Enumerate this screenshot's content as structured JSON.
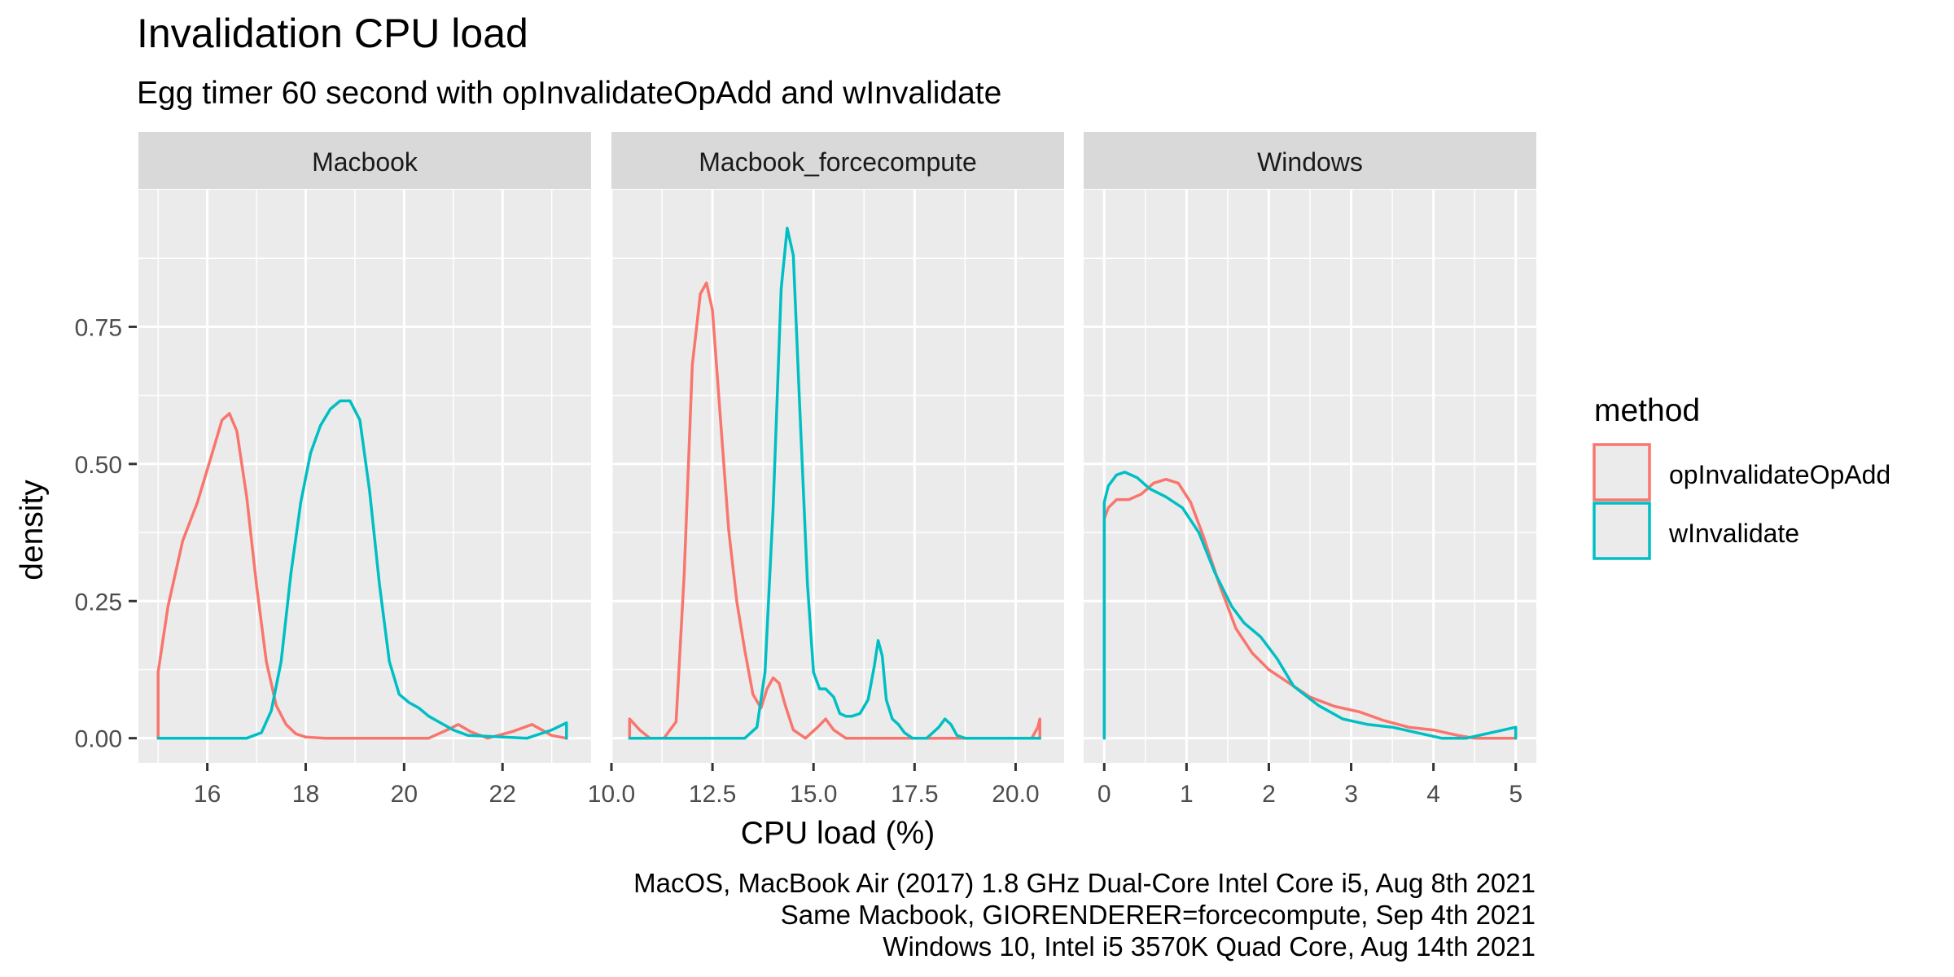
{
  "title": "Invalidation CPU load",
  "subtitle": "Egg timer 60 second with opInvalidateOpAdd and wInvalidate",
  "caption": [
    "MacOS, MacBook Air (2017) 1.8 GHz Dual-Core Intel Core i5, Aug 8th 2021",
    "Same Macbook, GIORENDERER=forcecompute, Sep 4th 2021",
    "Windows 10, Intel i5 3570K Quad Core, Aug 14th 2021"
  ],
  "chart_data": {
    "type": "line",
    "title": "Invalidation CPU load",
    "subtitle": "Egg timer 60 second with opInvalidateOpAdd and wInvalidate",
    "xlabel": "CPU load (%)",
    "ylabel": "density",
    "grid": true,
    "legend": {
      "title": "method",
      "placement": "right",
      "entries": [
        {
          "name": "opInvalidateOpAdd",
          "color": "#F8766D"
        },
        {
          "name": "wInvalidate",
          "color": "#00BFC4"
        }
      ]
    },
    "ylim": [
      -0.045,
      1.0
    ],
    "yticks": [
      0,
      0.25,
      0.5,
      0.75
    ],
    "ytick_labels": [
      "0.00",
      "0.25",
      "0.50",
      "0.75"
    ],
    "facets": [
      {
        "label": "Macbook",
        "xlim": [
          14.6,
          23.8
        ],
        "xticks": [
          16,
          18,
          20,
          22
        ],
        "xtick_labels": [
          "16",
          "18",
          "20",
          "22"
        ],
        "series": [
          {
            "name": "opInvalidateOpAdd",
            "color": "#F8766D",
            "x": [
              15.0,
              15.0,
              15.2,
              15.5,
              15.8,
              16.1,
              16.3,
              16.45,
              16.6,
              16.8,
              17.0,
              17.2,
              17.4,
              17.6,
              17.8,
              18.0,
              18.4,
              20.5,
              20.9,
              21.1,
              21.35,
              21.7,
              22.2,
              22.6,
              23.0,
              23.3
            ],
            "y": [
              0.0,
              0.12,
              0.24,
              0.36,
              0.43,
              0.52,
              0.58,
              0.592,
              0.56,
              0.44,
              0.28,
              0.14,
              0.06,
              0.025,
              0.008,
              0.002,
              0.0,
              0.0,
              0.016,
              0.025,
              0.012,
              0.0,
              0.012,
              0.025,
              0.005,
              0.0
            ]
          },
          {
            "name": "wInvalidate",
            "color": "#00BFC4",
            "x": [
              15.0,
              16.8,
              17.1,
              17.3,
              17.5,
              17.7,
              17.9,
              18.1,
              18.3,
              18.5,
              18.7,
              18.9,
              19.1,
              19.3,
              19.5,
              19.7,
              19.9,
              20.1,
              20.3,
              20.5,
              20.7,
              21.0,
              21.3,
              22.5,
              23.0,
              23.3,
              23.3,
              23.3
            ],
            "y": [
              0.0,
              0.0,
              0.01,
              0.05,
              0.14,
              0.3,
              0.43,
              0.52,
              0.57,
              0.6,
              0.615,
              0.615,
              0.58,
              0.45,
              0.28,
              0.14,
              0.08,
              0.065,
              0.055,
              0.04,
              0.03,
              0.015,
              0.005,
              0.0,
              0.015,
              0.028,
              0.0,
              0.0
            ]
          }
        ]
      },
      {
        "label": "Macbook_forcecompute",
        "xlim": [
          10.0,
          21.2
        ],
        "xticks": [
          10.0,
          12.5,
          15.0,
          17.5,
          20.0
        ],
        "xtick_labels": [
          "10.0",
          "12.5",
          "15.0",
          "17.5",
          "20.0"
        ],
        "series": [
          {
            "name": "opInvalidateOpAdd",
            "color": "#F8766D",
            "x": [
              10.45,
              10.45,
              10.7,
              10.95,
              11.3,
              11.6,
              11.8,
              12.0,
              12.2,
              12.35,
              12.5,
              12.7,
              12.9,
              13.1,
              13.3,
              13.5,
              13.7,
              13.85,
              14.0,
              14.15,
              14.3,
              14.5,
              14.8,
              15.1,
              15.3,
              15.5,
              15.8,
              20.4,
              20.55,
              20.6,
              20.6
            ],
            "y": [
              0.0,
              0.035,
              0.015,
              0.0,
              0.0,
              0.03,
              0.3,
              0.68,
              0.81,
              0.83,
              0.78,
              0.58,
              0.38,
              0.25,
              0.16,
              0.08,
              0.055,
              0.09,
              0.11,
              0.1,
              0.06,
              0.015,
              0.0,
              0.02,
              0.035,
              0.015,
              0.0,
              0.0,
              0.02,
              0.035,
              0.0
            ]
          },
          {
            "name": "wInvalidate",
            "color": "#00BFC4",
            "x": [
              10.45,
              13.3,
              13.6,
              13.8,
              14.0,
              14.2,
              14.35,
              14.5,
              14.65,
              14.85,
              15.0,
              15.15,
              15.3,
              15.5,
              15.65,
              15.8,
              15.95,
              16.15,
              16.35,
              16.5,
              16.6,
              16.7,
              16.8,
              16.95,
              17.1,
              17.25,
              17.45,
              17.8,
              18.1,
              18.25,
              18.4,
              18.55,
              18.75,
              20.6
            ],
            "y": [
              0.0,
              0.0,
              0.02,
              0.12,
              0.42,
              0.82,
              0.93,
              0.88,
              0.62,
              0.28,
              0.12,
              0.09,
              0.09,
              0.075,
              0.045,
              0.04,
              0.04,
              0.045,
              0.07,
              0.13,
              0.178,
              0.15,
              0.07,
              0.035,
              0.025,
              0.01,
              0.0,
              0.0,
              0.02,
              0.035,
              0.025,
              0.005,
              0.0,
              0.0
            ]
          }
        ]
      },
      {
        "label": "Windows",
        "xlim": [
          -0.25,
          5.25
        ],
        "xticks": [
          0,
          1,
          2,
          3,
          4,
          5
        ],
        "xtick_labels": [
          "0",
          "1",
          "2",
          "3",
          "4",
          "5"
        ],
        "series": [
          {
            "name": "opInvalidateOpAdd",
            "color": "#F8766D",
            "x": [
              0.0,
              0.0,
              0.05,
              0.15,
              0.3,
              0.45,
              0.6,
              0.75,
              0.9,
              1.05,
              1.2,
              1.4,
              1.6,
              1.8,
              2.0,
              2.2,
              2.5,
              2.8,
              3.1,
              3.4,
              3.7,
              4.0,
              4.3,
              4.5,
              4.8,
              5.0
            ],
            "y": [
              0.0,
              0.4,
              0.42,
              0.435,
              0.435,
              0.445,
              0.465,
              0.472,
              0.465,
              0.43,
              0.37,
              0.28,
              0.2,
              0.155,
              0.125,
              0.105,
              0.075,
              0.058,
              0.048,
              0.032,
              0.02,
              0.015,
              0.005,
              0.0,
              0.0,
              0.0
            ]
          },
          {
            "name": "wInvalidate",
            "color": "#00BFC4",
            "x": [
              0.0,
              0.0,
              0.05,
              0.15,
              0.25,
              0.4,
              0.55,
              0.75,
              0.95,
              1.15,
              1.35,
              1.55,
              1.7,
              1.9,
              2.1,
              2.3,
              2.6,
              2.9,
              3.2,
              3.5,
              3.8,
              4.1,
              4.4,
              4.7,
              5.0,
              5.0,
              5.0
            ],
            "y": [
              0.0,
              0.43,
              0.46,
              0.48,
              0.485,
              0.475,
              0.455,
              0.44,
              0.42,
              0.375,
              0.3,
              0.24,
              0.21,
              0.185,
              0.145,
              0.095,
              0.06,
              0.035,
              0.025,
              0.02,
              0.01,
              0.0,
              0.0,
              0.01,
              0.02,
              0.0,
              0.0
            ]
          }
        ]
      }
    ]
  }
}
